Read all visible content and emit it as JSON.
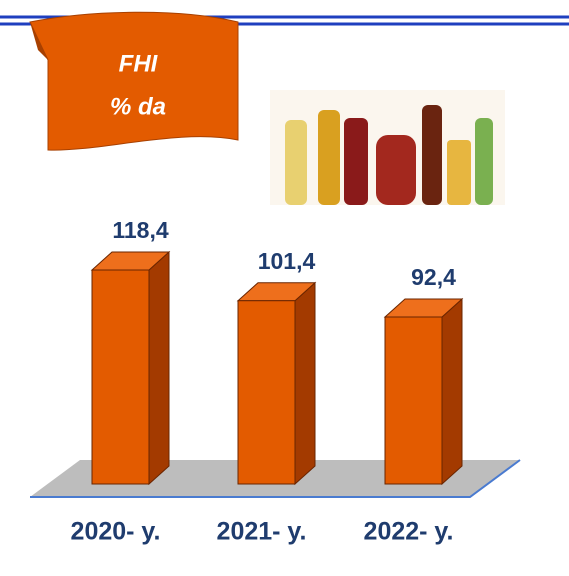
{
  "chart_data": {
    "type": "bar3d",
    "title": "FHI",
    "subtitle": "% da",
    "categories": [
      "2020- y.",
      "2021- y.",
      "2022- y."
    ],
    "values": [
      118.4,
      101.4,
      92.4
    ],
    "value_labels": [
      "118,4",
      "101,4",
      "92,4"
    ],
    "color": "#e35b00"
  }
}
